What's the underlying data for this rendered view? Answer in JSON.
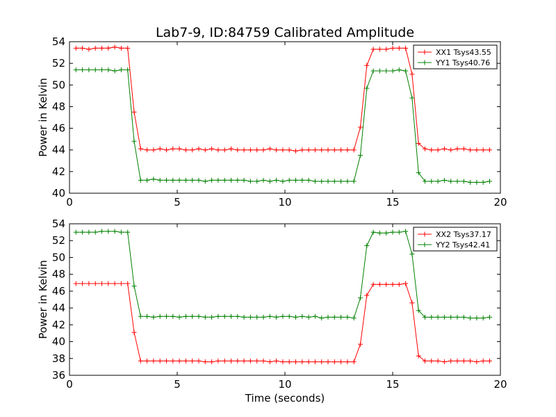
{
  "chart_data": [
    {
      "type": "line",
      "title": "Lab7-9, ID:84759 Calibrated Amplitude",
      "xlabel": "",
      "ylabel": "Power in Kelvin",
      "xlim": [
        0,
        20
      ],
      "ylim": [
        40,
        54
      ],
      "xticks": [
        0,
        5,
        10,
        15,
        20
      ],
      "yticks": [
        40,
        42,
        44,
        46,
        48,
        50,
        52,
        54
      ],
      "grid": false,
      "legend_position": "top-right",
      "x": [
        0.3,
        0.6,
        0.9,
        1.2,
        1.5,
        1.8,
        2.1,
        2.4,
        2.7,
        3.0,
        3.3,
        3.6,
        3.9,
        4.2,
        4.5,
        4.8,
        5.1,
        5.4,
        5.7,
        6.0,
        6.3,
        6.6,
        6.9,
        7.2,
        7.5,
        7.8,
        8.1,
        8.4,
        8.7,
        9.0,
        9.3,
        9.6,
        9.9,
        10.2,
        10.5,
        10.8,
        11.1,
        11.4,
        11.7,
        12.0,
        12.3,
        12.6,
        12.9,
        13.2,
        13.5,
        13.8,
        14.1,
        14.4,
        14.7,
        15.0,
        15.3,
        15.6,
        15.9,
        16.2,
        16.5,
        16.8,
        17.1,
        17.4,
        17.7,
        18.0,
        18.3,
        18.6,
        18.9,
        19.2,
        19.5
      ],
      "series": [
        {
          "name": "XX1 Tsys43.55",
          "color": "#ff0000",
          "values": [
            53.4,
            53.4,
            53.3,
            53.4,
            53.4,
            53.4,
            53.5,
            53.4,
            53.4,
            47.5,
            44.1,
            44.0,
            44.0,
            44.1,
            44.0,
            44.1,
            44.1,
            44.0,
            44.0,
            44.1,
            44.0,
            44.1,
            44.0,
            44.0,
            44.1,
            44.0,
            44.0,
            44.0,
            44.0,
            44.0,
            44.1,
            44.0,
            44.0,
            44.0,
            43.9,
            44.0,
            44.0,
            44.0,
            44.0,
            44.0,
            44.0,
            44.0,
            44.0,
            44.0,
            46.1,
            51.8,
            53.3,
            53.3,
            53.3,
            53.4,
            53.4,
            53.4,
            51.0,
            44.6,
            44.1,
            44.0,
            44.0,
            44.1,
            44.0,
            44.1,
            44.1,
            44.0,
            44.0,
            44.0,
            44.0
          ]
        },
        {
          "name": "YY1 Tsys40.76",
          "color": "#008000",
          "values": [
            51.4,
            51.4,
            51.4,
            51.4,
            51.4,
            51.4,
            51.3,
            51.4,
            51.4,
            44.8,
            41.2,
            41.2,
            41.3,
            41.2,
            41.2,
            41.2,
            41.2,
            41.2,
            41.2,
            41.2,
            41.1,
            41.2,
            41.2,
            41.2,
            41.2,
            41.2,
            41.2,
            41.1,
            41.1,
            41.2,
            41.1,
            41.2,
            41.1,
            41.2,
            41.2,
            41.2,
            41.2,
            41.1,
            41.1,
            41.1,
            41.1,
            41.1,
            41.1,
            41.1,
            43.5,
            49.7,
            51.3,
            51.3,
            51.3,
            51.3,
            51.4,
            51.3,
            48.8,
            41.9,
            41.1,
            41.1,
            41.1,
            41.2,
            41.1,
            41.1,
            41.1,
            41.0,
            41.0,
            41.0,
            41.1
          ]
        }
      ]
    },
    {
      "type": "line",
      "title": "",
      "xlabel": "Time (seconds)",
      "ylabel": "Power in Kelvin",
      "xlim": [
        0,
        20
      ],
      "ylim": [
        36,
        54
      ],
      "xticks": [
        0,
        5,
        10,
        15,
        20
      ],
      "yticks": [
        36,
        38,
        40,
        42,
        44,
        46,
        48,
        50,
        52,
        54
      ],
      "grid": false,
      "legend_position": "top-right",
      "x": [
        0.3,
        0.6,
        0.9,
        1.2,
        1.5,
        1.8,
        2.1,
        2.4,
        2.7,
        3.0,
        3.3,
        3.6,
        3.9,
        4.2,
        4.5,
        4.8,
        5.1,
        5.4,
        5.7,
        6.0,
        6.3,
        6.6,
        6.9,
        7.2,
        7.5,
        7.8,
        8.1,
        8.4,
        8.7,
        9.0,
        9.3,
        9.6,
        9.9,
        10.2,
        10.5,
        10.8,
        11.1,
        11.4,
        11.7,
        12.0,
        12.3,
        12.6,
        12.9,
        13.2,
        13.5,
        13.8,
        14.1,
        14.4,
        14.7,
        15.0,
        15.3,
        15.6,
        15.9,
        16.2,
        16.5,
        16.8,
        17.1,
        17.4,
        17.7,
        18.0,
        18.3,
        18.6,
        18.9,
        19.2,
        19.5
      ],
      "series": [
        {
          "name": "XX2 Tsys37.17",
          "color": "#ff0000",
          "values": [
            46.9,
            46.9,
            46.9,
            46.9,
            46.9,
            46.9,
            46.9,
            46.9,
            46.9,
            41.1,
            37.7,
            37.7,
            37.7,
            37.7,
            37.7,
            37.7,
            37.7,
            37.7,
            37.7,
            37.7,
            37.6,
            37.6,
            37.7,
            37.7,
            37.7,
            37.7,
            37.7,
            37.7,
            37.7,
            37.7,
            37.6,
            37.7,
            37.6,
            37.6,
            37.6,
            37.6,
            37.6,
            37.6,
            37.6,
            37.6,
            37.6,
            37.6,
            37.6,
            37.6,
            39.7,
            45.5,
            46.8,
            46.8,
            46.8,
            46.8,
            46.8,
            46.9,
            44.6,
            38.3,
            37.7,
            37.7,
            37.7,
            37.6,
            37.7,
            37.7,
            37.7,
            37.7,
            37.6,
            37.7,
            37.7
          ]
        },
        {
          "name": "YY2 Tsys42.41",
          "color": "#008000",
          "values": [
            53.0,
            53.0,
            53.0,
            53.0,
            53.1,
            53.1,
            53.1,
            53.0,
            53.0,
            46.6,
            43.0,
            43.0,
            42.9,
            43.0,
            43.0,
            43.0,
            42.9,
            43.0,
            43.0,
            43.0,
            42.9,
            42.9,
            43.0,
            43.0,
            43.0,
            43.0,
            42.9,
            42.9,
            42.9,
            42.9,
            43.0,
            42.9,
            43.0,
            43.0,
            42.9,
            43.0,
            42.9,
            43.0,
            42.8,
            42.9,
            42.9,
            42.9,
            42.9,
            42.8,
            45.2,
            51.4,
            53.0,
            52.9,
            52.9,
            53.0,
            53.0,
            53.1,
            50.4,
            43.7,
            42.9,
            42.9,
            42.9,
            42.9,
            42.9,
            42.9,
            42.9,
            42.8,
            42.8,
            42.8,
            42.9
          ]
        }
      ]
    }
  ]
}
